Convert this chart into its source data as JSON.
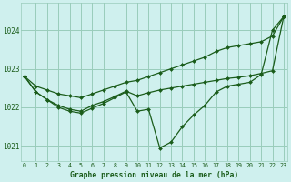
{
  "title": "Graphe pression niveau de la mer (hPa)",
  "bg_color": "#cff0ee",
  "grid_color": "#99ccbb",
  "line_color": "#1a5c1a",
  "x_ticks": [
    0,
    1,
    2,
    3,
    4,
    5,
    6,
    7,
    8,
    9,
    10,
    11,
    12,
    13,
    14,
    15,
    16,
    17,
    18,
    19,
    20,
    21,
    22,
    23
  ],
  "y_ticks": [
    1021,
    1022,
    1023,
    1024
  ],
  "ylim": [
    1020.6,
    1024.7
  ],
  "xlim": [
    -0.3,
    23.3
  ],
  "series": [
    [
      1022.8,
      1022.4,
      1022.2,
      1022.0,
      1021.9,
      1021.85,
      1021.98,
      1022.1,
      1022.25,
      1022.4,
      1021.9,
      1021.95,
      1020.95,
      1021.1,
      1021.5,
      1021.8,
      1022.05,
      1022.4,
      1022.55,
      1022.6,
      1022.65,
      1022.85,
      1024.0,
      1024.35
    ],
    [
      1022.8,
      1022.4,
      1022.2,
      1022.05,
      1021.95,
      1021.9,
      1022.05,
      1022.15,
      1022.28,
      1022.42,
      1022.3,
      1022.38,
      1022.45,
      1022.5,
      1022.55,
      1022.6,
      1022.65,
      1022.7,
      1022.75,
      1022.78,
      1022.82,
      1022.88,
      1022.95,
      1024.35
    ],
    [
      1022.8,
      1022.55,
      1022.45,
      1022.35,
      1022.3,
      1022.25,
      1022.35,
      1022.45,
      1022.55,
      1022.65,
      1022.7,
      1022.8,
      1022.9,
      1023.0,
      1023.1,
      1023.2,
      1023.3,
      1023.45,
      1023.55,
      1023.6,
      1023.65,
      1023.7,
      1023.85,
      1024.35
    ]
  ]
}
